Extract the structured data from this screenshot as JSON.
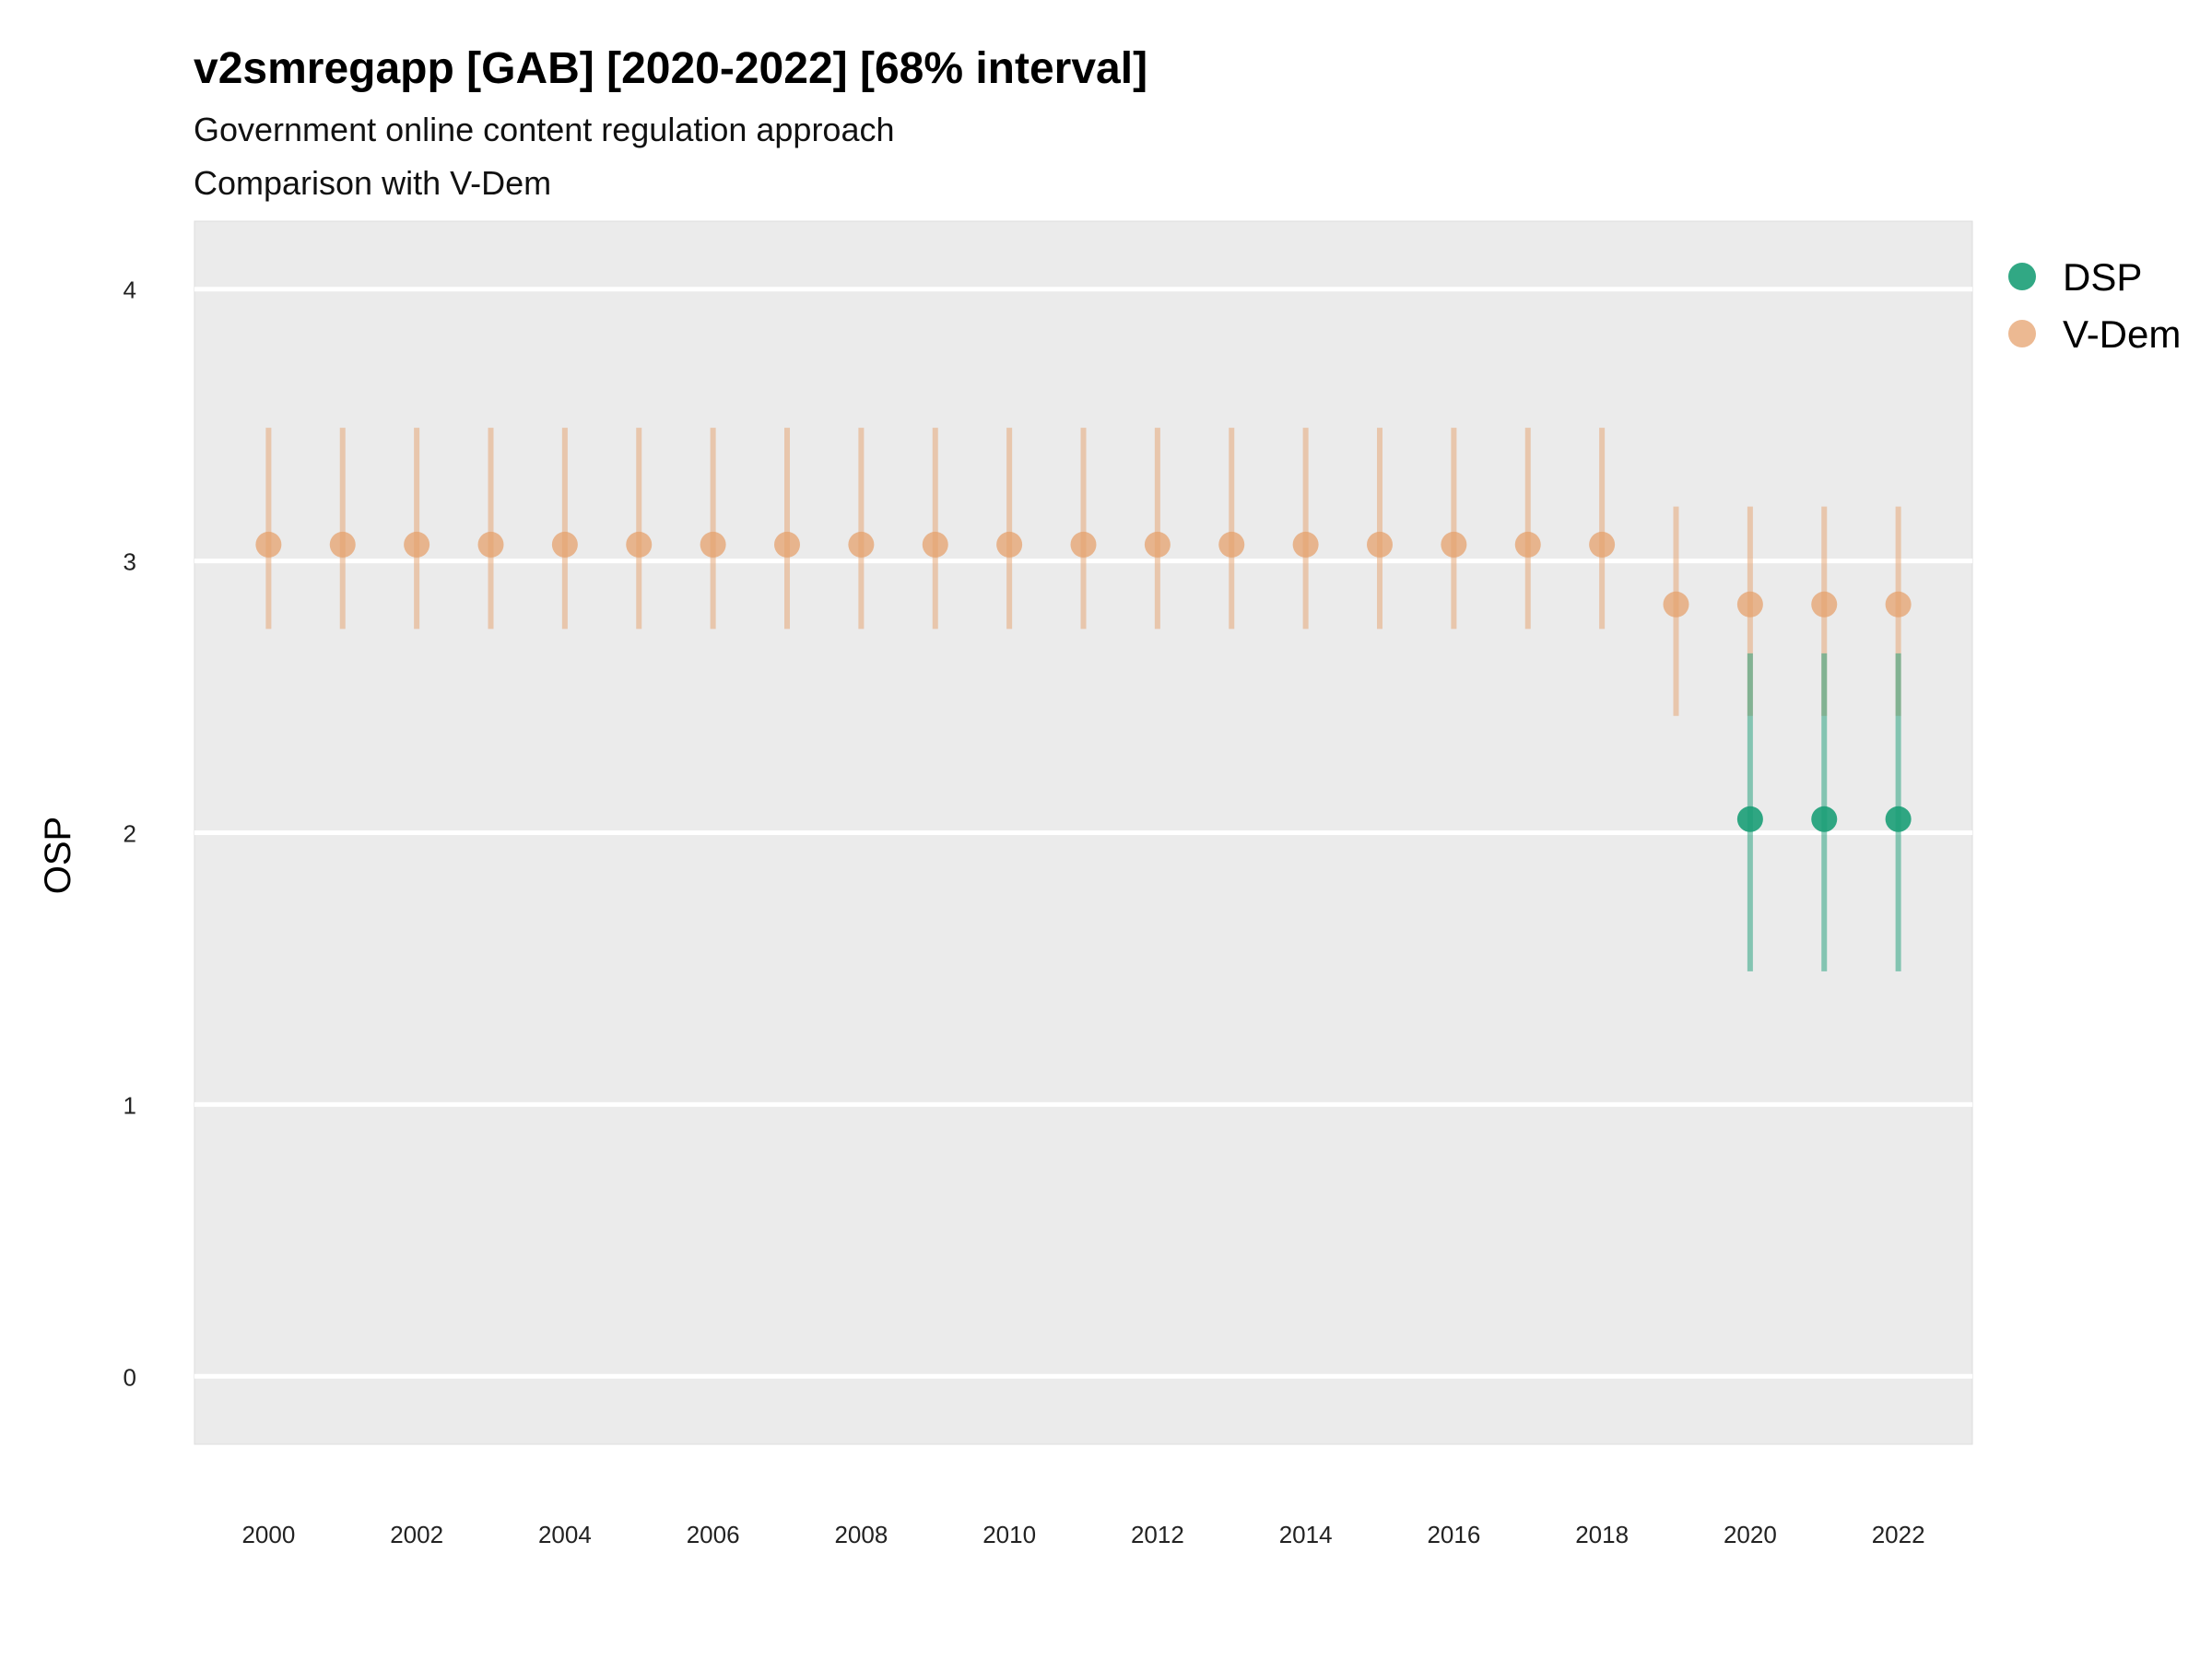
{
  "chart_data": {
    "type": "scatter",
    "title": "v2smregapp [GAB] [2020-2022] [68% interval]",
    "subtitle": [
      "Government online content regulation approach",
      "Comparison with V-Dem"
    ],
    "xlabel": "",
    "ylabel": "OSP",
    "xlim": [
      1999,
      2023
    ],
    "ylim": [
      -0.25,
      4.25
    ],
    "x_ticks": [
      2000,
      2002,
      2004,
      2006,
      2008,
      2010,
      2012,
      2014,
      2016,
      2018,
      2020,
      2022
    ],
    "y_ticks": [
      0,
      1,
      2,
      3,
      4
    ],
    "grid": true,
    "legend_position": "right",
    "series": [
      {
        "name": "DSP",
        "color": "#1b9e77",
        "points": [
          {
            "x": 2020,
            "y": 2.05,
            "lo": 1.49,
            "hi": 2.66
          },
          {
            "x": 2021,
            "y": 2.05,
            "lo": 1.49,
            "hi": 2.66
          },
          {
            "x": 2022,
            "y": 2.05,
            "lo": 1.49,
            "hi": 2.66
          }
        ]
      },
      {
        "name": "V-Dem",
        "color": "#e6a26e",
        "points": [
          {
            "x": 2000,
            "y": 3.06,
            "lo": 2.75,
            "hi": 3.49
          },
          {
            "x": 2001,
            "y": 3.06,
            "lo": 2.75,
            "hi": 3.49
          },
          {
            "x": 2002,
            "y": 3.06,
            "lo": 2.75,
            "hi": 3.49
          },
          {
            "x": 2003,
            "y": 3.06,
            "lo": 2.75,
            "hi": 3.49
          },
          {
            "x": 2004,
            "y": 3.06,
            "lo": 2.75,
            "hi": 3.49
          },
          {
            "x": 2005,
            "y": 3.06,
            "lo": 2.75,
            "hi": 3.49
          },
          {
            "x": 2006,
            "y": 3.06,
            "lo": 2.75,
            "hi": 3.49
          },
          {
            "x": 2007,
            "y": 3.06,
            "lo": 2.75,
            "hi": 3.49
          },
          {
            "x": 2008,
            "y": 3.06,
            "lo": 2.75,
            "hi": 3.49
          },
          {
            "x": 2009,
            "y": 3.06,
            "lo": 2.75,
            "hi": 3.49
          },
          {
            "x": 2010,
            "y": 3.06,
            "lo": 2.75,
            "hi": 3.49
          },
          {
            "x": 2011,
            "y": 3.06,
            "lo": 2.75,
            "hi": 3.49
          },
          {
            "x": 2012,
            "y": 3.06,
            "lo": 2.75,
            "hi": 3.49
          },
          {
            "x": 2013,
            "y": 3.06,
            "lo": 2.75,
            "hi": 3.49
          },
          {
            "x": 2014,
            "y": 3.06,
            "lo": 2.75,
            "hi": 3.49
          },
          {
            "x": 2015,
            "y": 3.06,
            "lo": 2.75,
            "hi": 3.49
          },
          {
            "x": 2016,
            "y": 3.06,
            "lo": 2.75,
            "hi": 3.49
          },
          {
            "x": 2017,
            "y": 3.06,
            "lo": 2.75,
            "hi": 3.49
          },
          {
            "x": 2018,
            "y": 3.06,
            "lo": 2.75,
            "hi": 3.49
          },
          {
            "x": 2019,
            "y": 2.84,
            "lo": 2.43,
            "hi": 3.2
          },
          {
            "x": 2020,
            "y": 2.84,
            "lo": 2.43,
            "hi": 3.2
          },
          {
            "x": 2021,
            "y": 2.84,
            "lo": 2.43,
            "hi": 3.2
          },
          {
            "x": 2022,
            "y": 2.84,
            "lo": 2.43,
            "hi": 3.2
          }
        ]
      }
    ]
  }
}
